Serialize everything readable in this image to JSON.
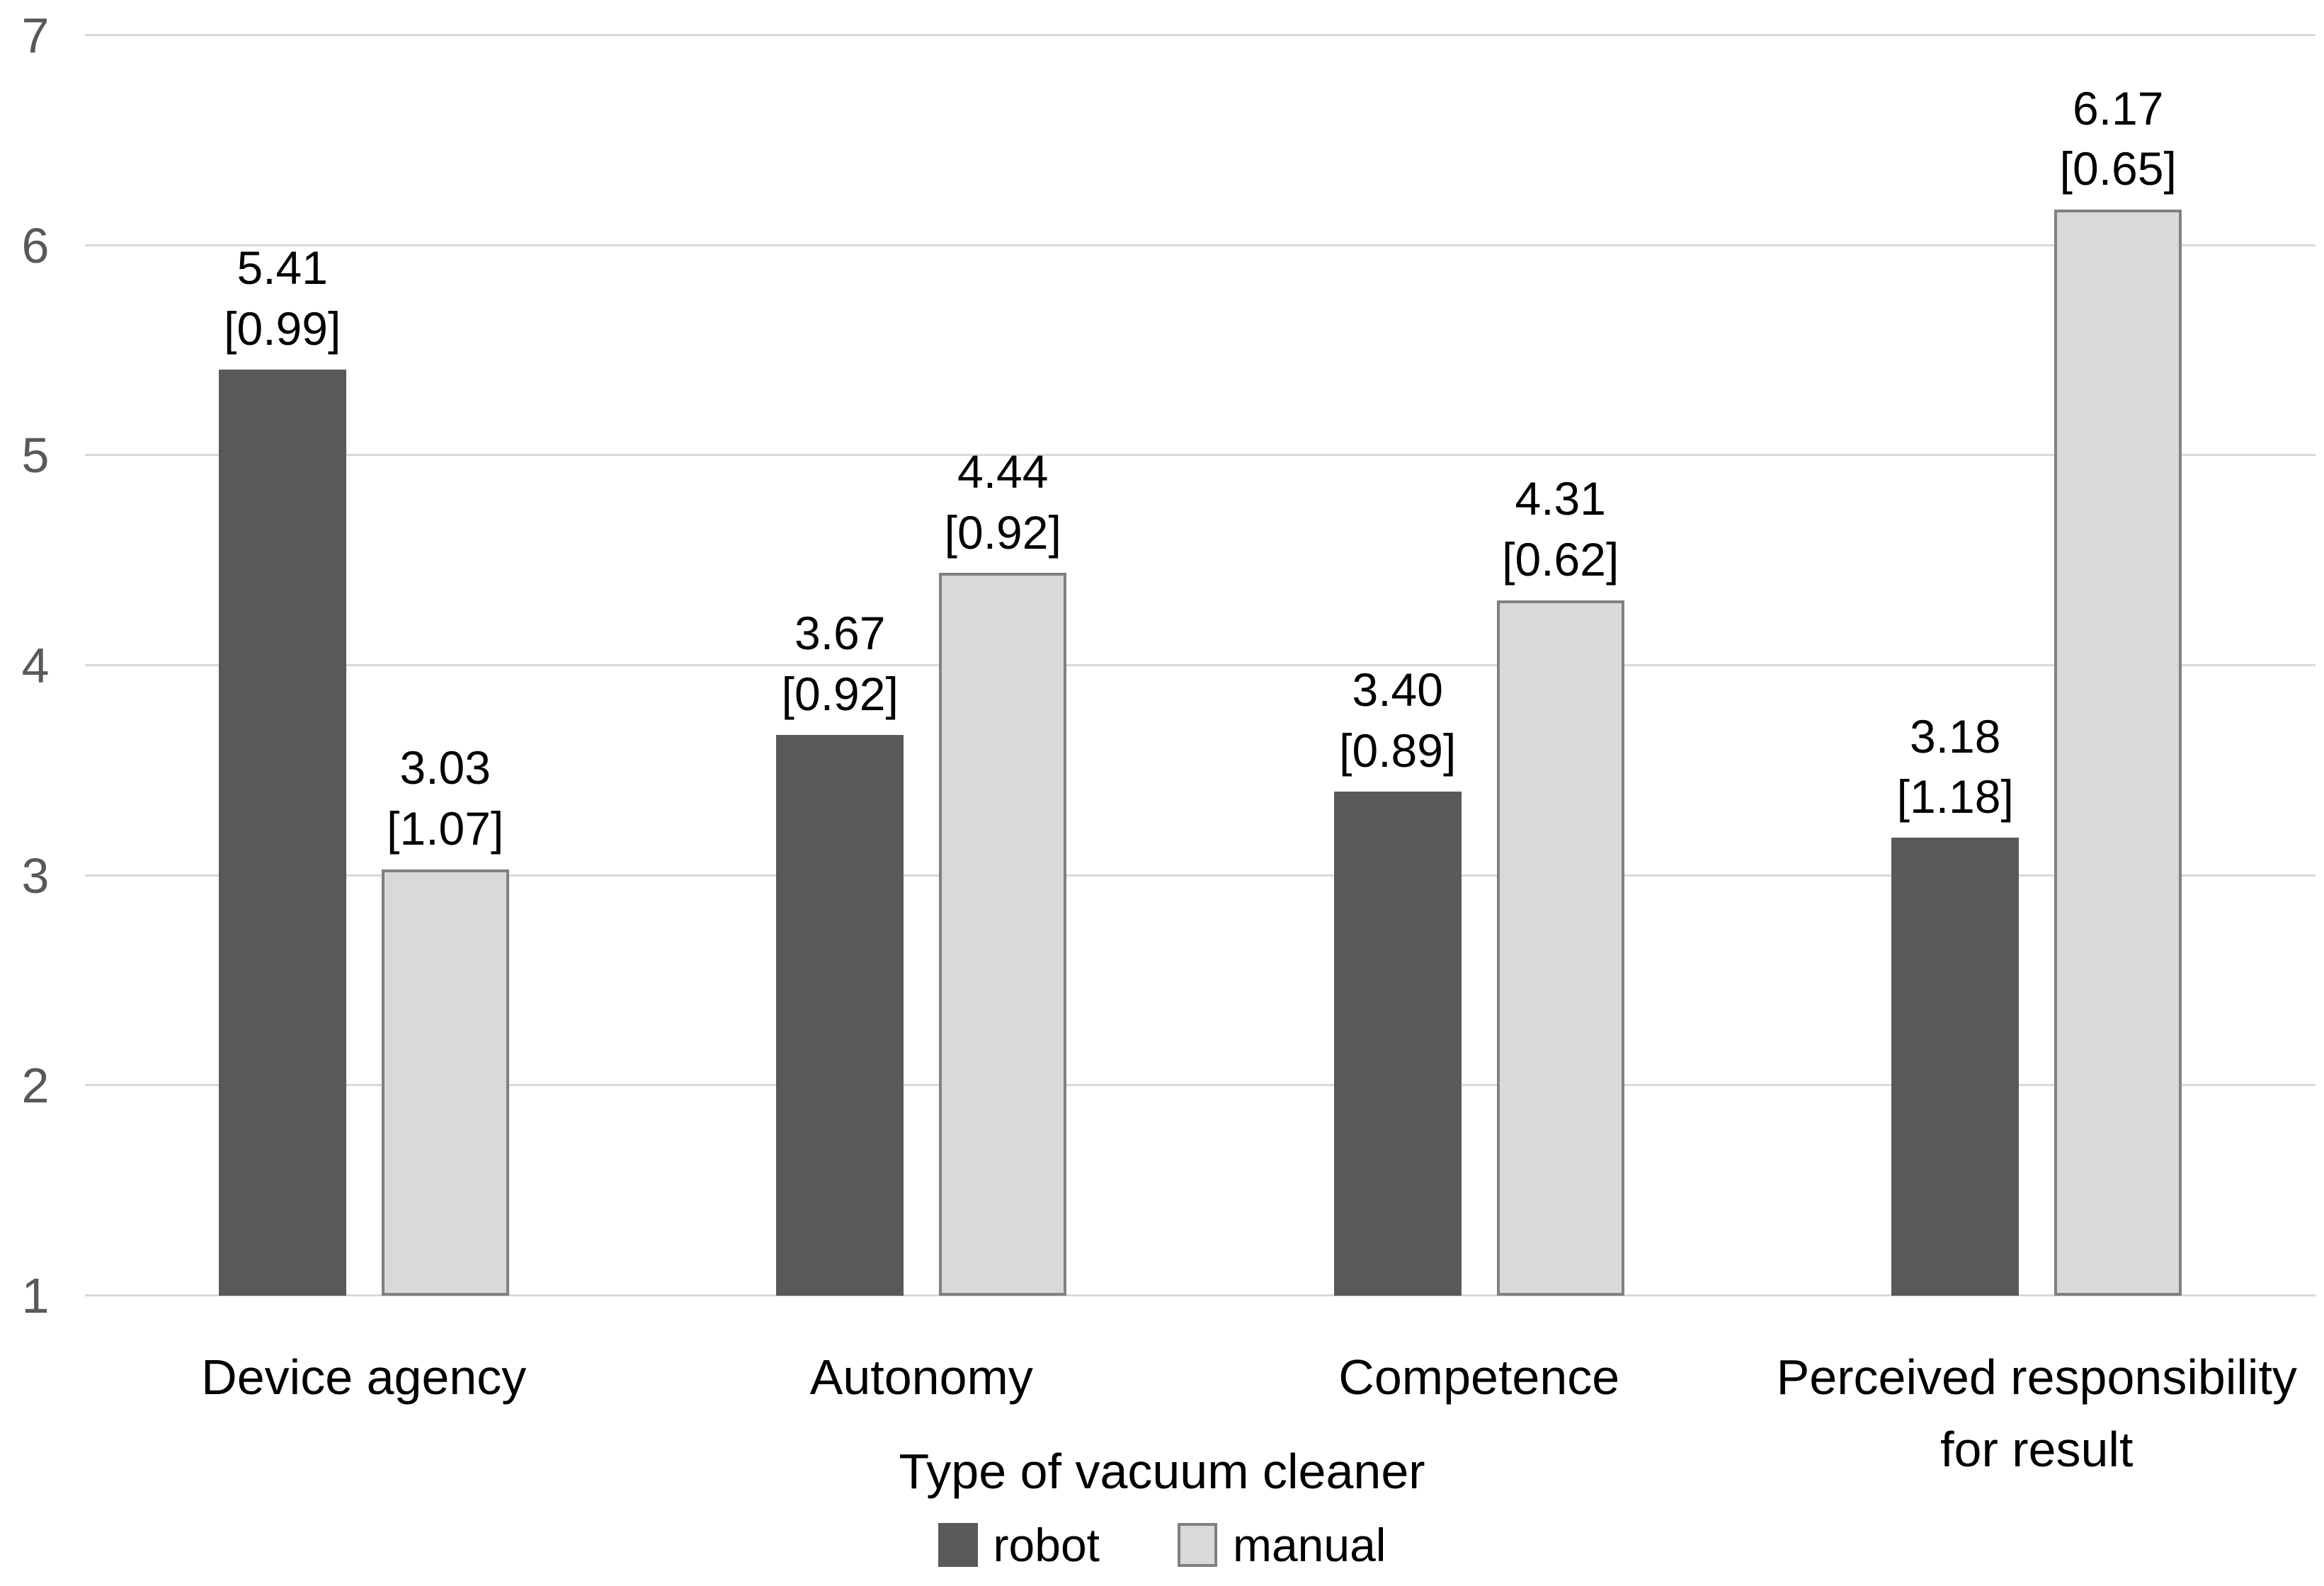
{
  "chart_data": {
    "type": "bar",
    "title": "",
    "categories": [
      "Device agency",
      "Autonomy",
      "Competence",
      "Perceived responsibility\nfor result"
    ],
    "x_axis_title": "Type of vacuum cleaner",
    "y_ticks": [
      1,
      2,
      3,
      4,
      5,
      6,
      7
    ],
    "ylim": [
      1,
      7
    ],
    "grid": true,
    "legend_position": "bottom",
    "series": [
      {
        "name": "robot",
        "color": "#595959",
        "values": [
          5.41,
          3.67,
          3.4,
          3.18
        ],
        "sd": [
          0.99,
          0.92,
          0.89,
          1.18
        ],
        "labels": [
          [
            "5.41",
            "[0.99]"
          ],
          [
            "3.67",
            "[0.92]"
          ],
          [
            "3.40",
            "[0.89]"
          ],
          [
            "3.18",
            "[1.18]"
          ]
        ]
      },
      {
        "name": "manual",
        "color": "#d9d9d9",
        "border_color": "#808080",
        "values": [
          3.03,
          4.44,
          4.31,
          6.17
        ],
        "sd": [
          1.07,
          0.92,
          0.62,
          0.65
        ],
        "labels": [
          [
            "3.03",
            "[1.07]"
          ],
          [
            "4.44",
            "[0.92]"
          ],
          [
            "4.31",
            "[0.62]"
          ],
          [
            "6.17",
            "[0.65]"
          ]
        ]
      }
    ],
    "colors": {
      "background": "#ffffff",
      "gridline": "#d9d9d9",
      "tick_text": "#595959",
      "label_text": "#000000"
    }
  }
}
